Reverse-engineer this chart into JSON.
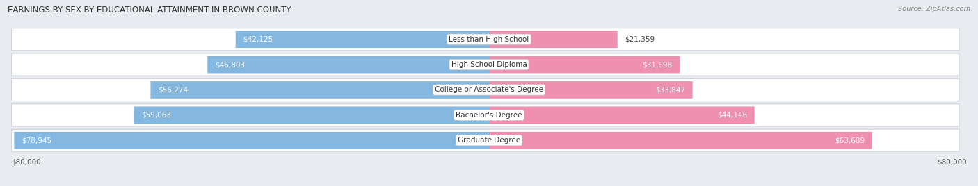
{
  "title": "EARNINGS BY SEX BY EDUCATIONAL ATTAINMENT IN BROWN COUNTY",
  "source": "Source: ZipAtlas.com",
  "categories": [
    "Less than High School",
    "High School Diploma",
    "College or Associate's Degree",
    "Bachelor's Degree",
    "Graduate Degree"
  ],
  "male_values": [
    42125,
    46803,
    56274,
    59063,
    78945
  ],
  "female_values": [
    21359,
    31698,
    33847,
    44146,
    63689
  ],
  "male_color": "#85b8e0",
  "female_color": "#f090b0",
  "max_value": 80000,
  "bg_color": "#e8ebf0",
  "row_bg_color": "#f5f6f8",
  "row_border_color": "#d0d4da",
  "title_fontsize": 8.5,
  "source_fontsize": 7,
  "cat_fontsize": 7.5,
  "value_fontsize": 7.5,
  "axis_label_fontsize": 7.5
}
